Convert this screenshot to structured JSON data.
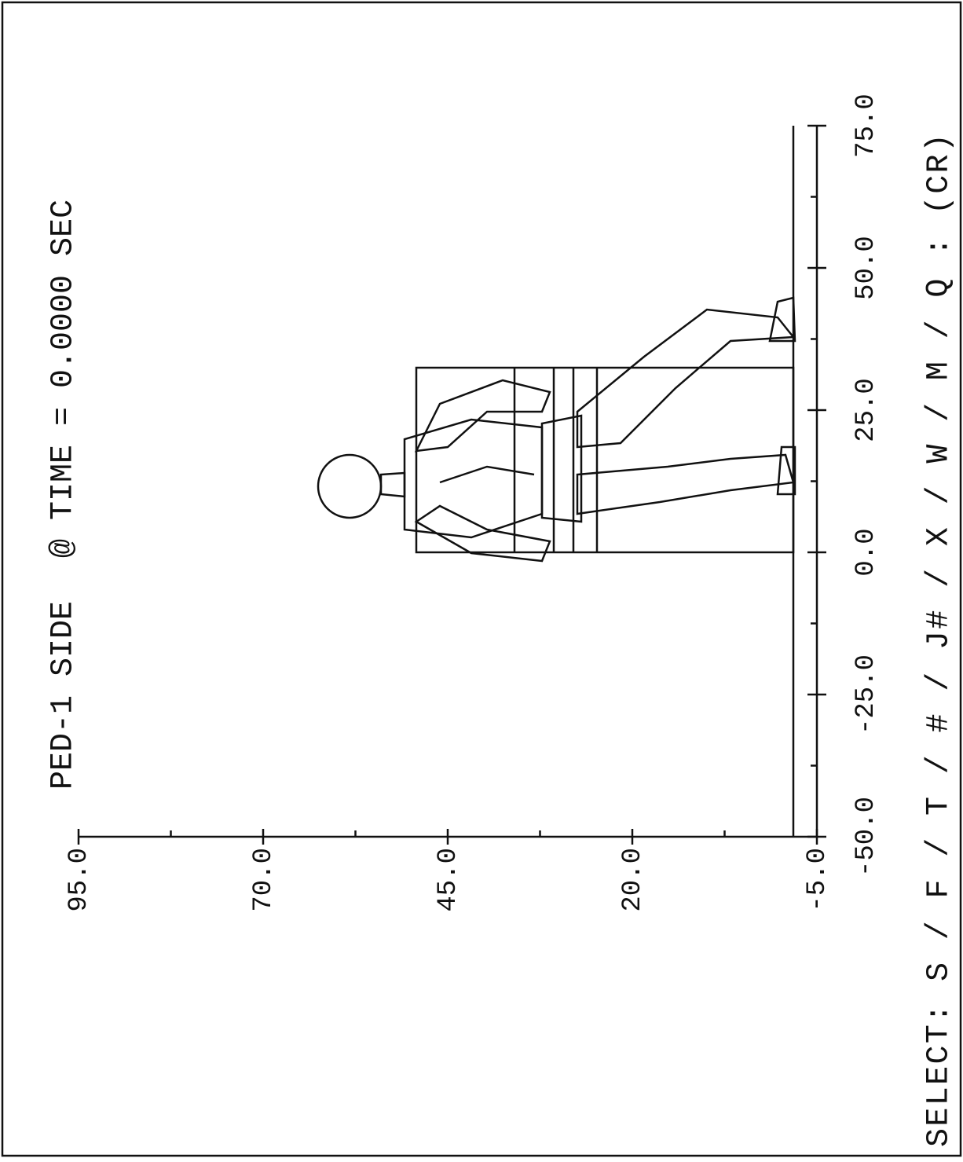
{
  "chart_data": {
    "type": "line",
    "title": "PED-1 SIDE",
    "subtitle": "@ TIME = 0.0000 SEC",
    "prompt": "SELECT: S / F / T / # / J# / X / W / M / Q : (CR)",
    "xlim": [
      -50,
      75
    ],
    "ylim": [
      -5,
      95
    ],
    "xticks": [
      {
        "value": -50,
        "label": "-50.0"
      },
      {
        "value": -25,
        "label": "-25.0"
      },
      {
        "value": 0,
        "label": "0.0"
      },
      {
        "value": 25,
        "label": "25.0"
      },
      {
        "value": 50,
        "label": "50.0"
      },
      {
        "value": 75,
        "label": "75.0"
      }
    ],
    "yticks": [
      {
        "value": -5,
        "label": "-5.0"
      },
      {
        "value": 20,
        "label": "20.0"
      },
      {
        "value": 45,
        "label": "45.0"
      },
      {
        "value": 70,
        "label": "70.0"
      },
      {
        "value": 95,
        "label": "95.0"
      }
    ],
    "xminorticks": [
      -37.5,
      -12.5,
      12.5,
      37.5,
      62.5
    ],
    "yminorticks": [
      7.5,
      32.5,
      57.5,
      82.5
    ]
  }
}
